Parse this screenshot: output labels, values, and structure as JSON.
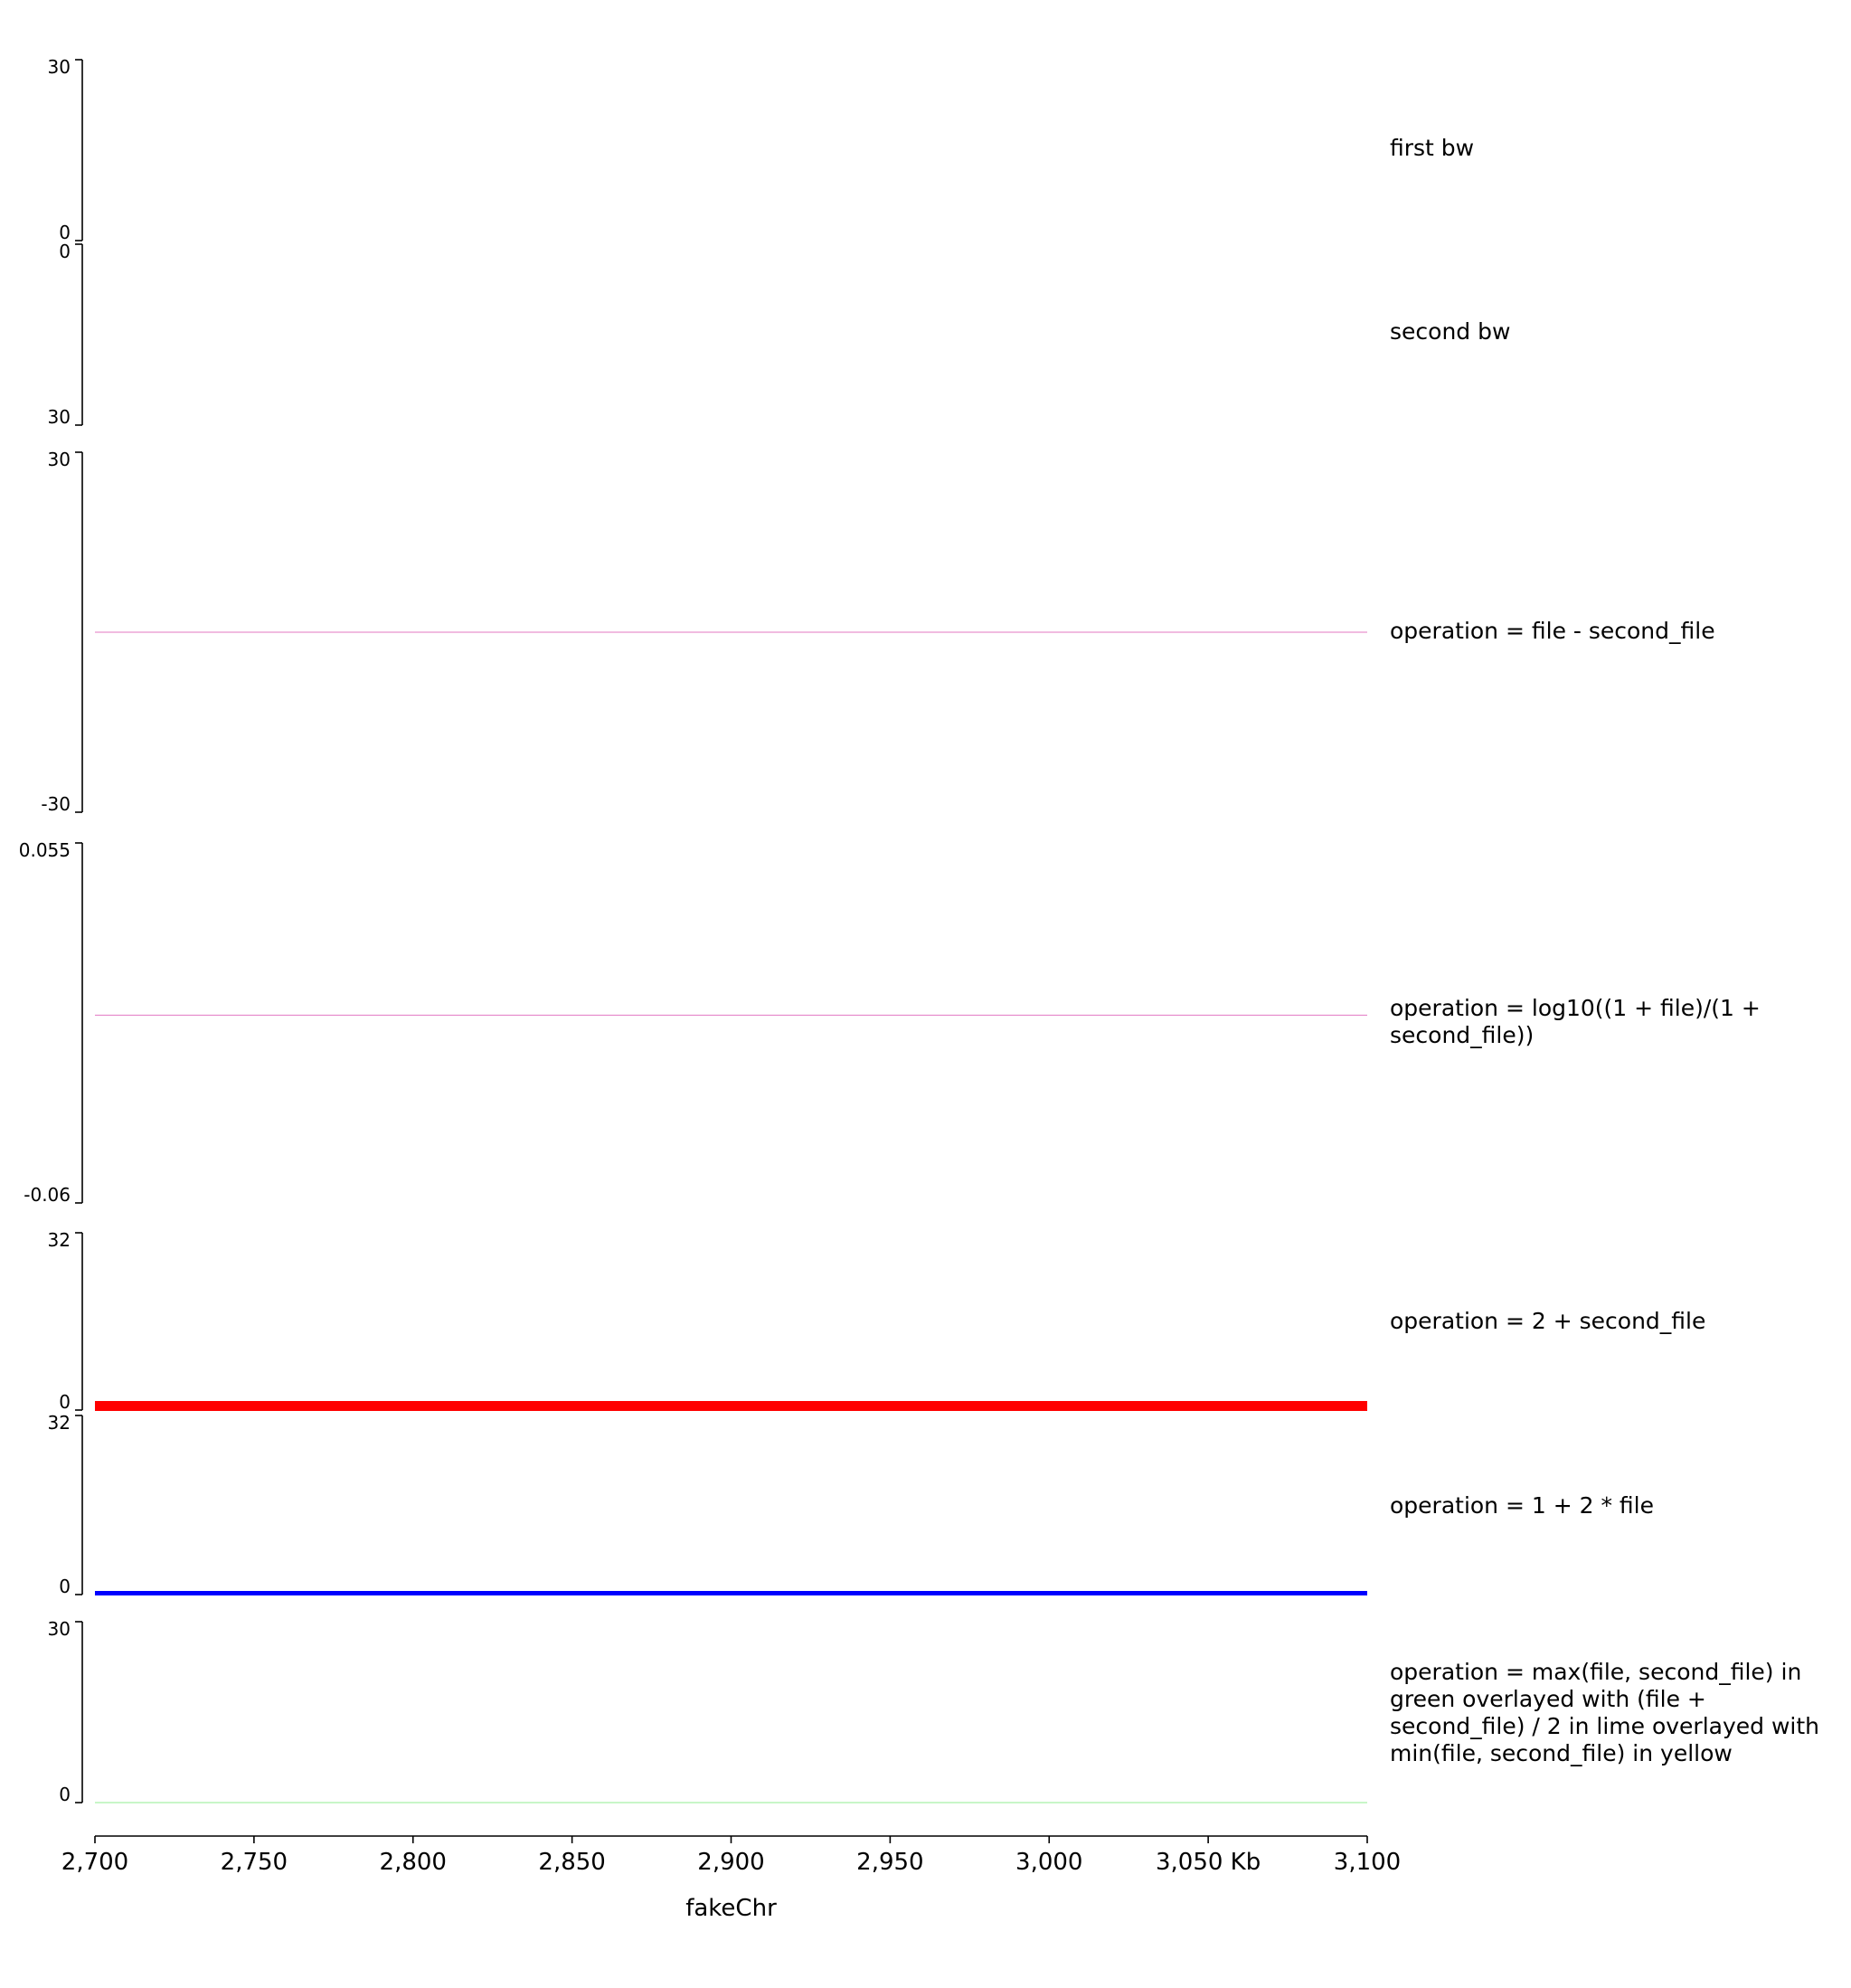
{
  "chart_data": {
    "type": "genome-tracks",
    "chromosome": "fakeChr",
    "x_axis": {
      "xlabel": "fakeChr",
      "xlim": [
        2700,
        3100
      ],
      "ticks": [
        2700,
        2750,
        2800,
        2850,
        2900,
        2950,
        3000,
        3050,
        3100
      ],
      "tick_labels": [
        "2,700",
        "2,750",
        "2,800",
        "2,850",
        "2,900",
        "2,950",
        "3,000",
        "3,050 Kb",
        "3,100"
      ]
    },
    "tracks": [
      {
        "title": "first bw",
        "ylim": [
          0,
          30
        ],
        "ytick_labels": [
          "30",
          "0"
        ],
        "inverted": false,
        "series": [
          {
            "color": "#e377c2",
            "values": [],
            "line": false
          }
        ]
      },
      {
        "title": "second bw",
        "ylim": [
          30,
          0
        ],
        "ytick_labels": [
          "0",
          "30"
        ],
        "inverted": true,
        "series": [
          {
            "color": "#e377c2",
            "values": [],
            "line": false
          }
        ]
      },
      {
        "title": "operation = file - second_file",
        "ylim": [
          -30,
          30
        ],
        "ytick_labels": [
          "30",
          "-30"
        ],
        "inverted": false,
        "series": [
          {
            "color": "#e377c2",
            "value": 0,
            "line": true,
            "width": 1
          }
        ]
      },
      {
        "title": "operation = log10((1 + file)/(1 + second_file))",
        "ylim": [
          -0.06,
          0.055
        ],
        "ytick_labels": [
          "0.055",
          "-0.06"
        ],
        "inverted": false,
        "series": [
          {
            "color": "#e377c2",
            "value": 0,
            "line": true,
            "width": 1
          }
        ]
      },
      {
        "title": "operation = 2 + second_file",
        "ylim": [
          0,
          32
        ],
        "ytick_labels": [
          "32",
          "0"
        ],
        "inverted": false,
        "series": [
          {
            "color": "#ff0000",
            "value": 0,
            "line": true,
            "width": 11
          }
        ]
      },
      {
        "title": "operation = 1 + 2 * file",
        "ylim": [
          0,
          32
        ],
        "ytick_labels": [
          "32",
          "0"
        ],
        "inverted": false,
        "series": [
          {
            "color": "#0000ff",
            "value": 0,
            "line": true,
            "width": 5
          }
        ]
      },
      {
        "title": "operation = max(file, second_file) in green overlayed with (file + second_file) / 2 in lime overlayed with min(file, second_file) in yellow",
        "ylim": [
          0,
          30
        ],
        "ytick_labels": [
          "30",
          "0"
        ],
        "inverted": false,
        "series": [
          {
            "color": "#90ee90",
            "value": 0,
            "line": true,
            "width": 1
          }
        ]
      }
    ]
  }
}
